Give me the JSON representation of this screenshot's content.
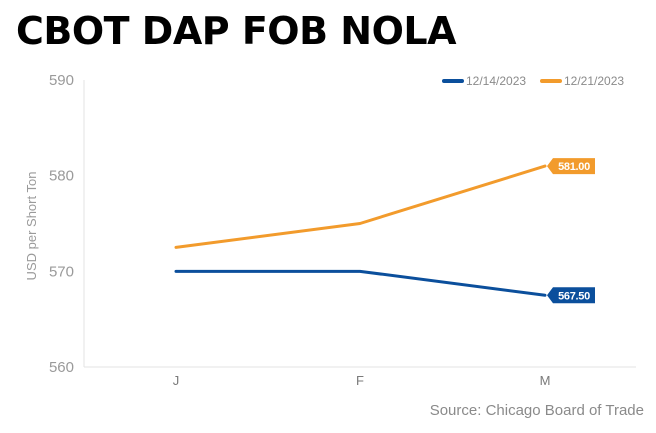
{
  "chart_data": {
    "type": "line",
    "title": "CBOT DAP FOB NOLA",
    "ylabel": "USD per Short Ton",
    "xlabel": "",
    "categories": [
      "J",
      "F",
      "M"
    ],
    "ylim": [
      560,
      590
    ],
    "yticks": [
      "560",
      "570",
      "580",
      "590"
    ],
    "grid": false,
    "legend_position": "top-right",
    "series": [
      {
        "name": "12/14/2023",
        "values": [
          570,
          570,
          567.5
        ],
        "color": "#0b4f9c",
        "end_label": "567.50"
      },
      {
        "name": "12/21/2023",
        "values": [
          572.5,
          575,
          581
        ],
        "color": "#f29b2c",
        "end_label": "581.00"
      }
    ],
    "source": "Source: Chicago Board of Trade"
  }
}
